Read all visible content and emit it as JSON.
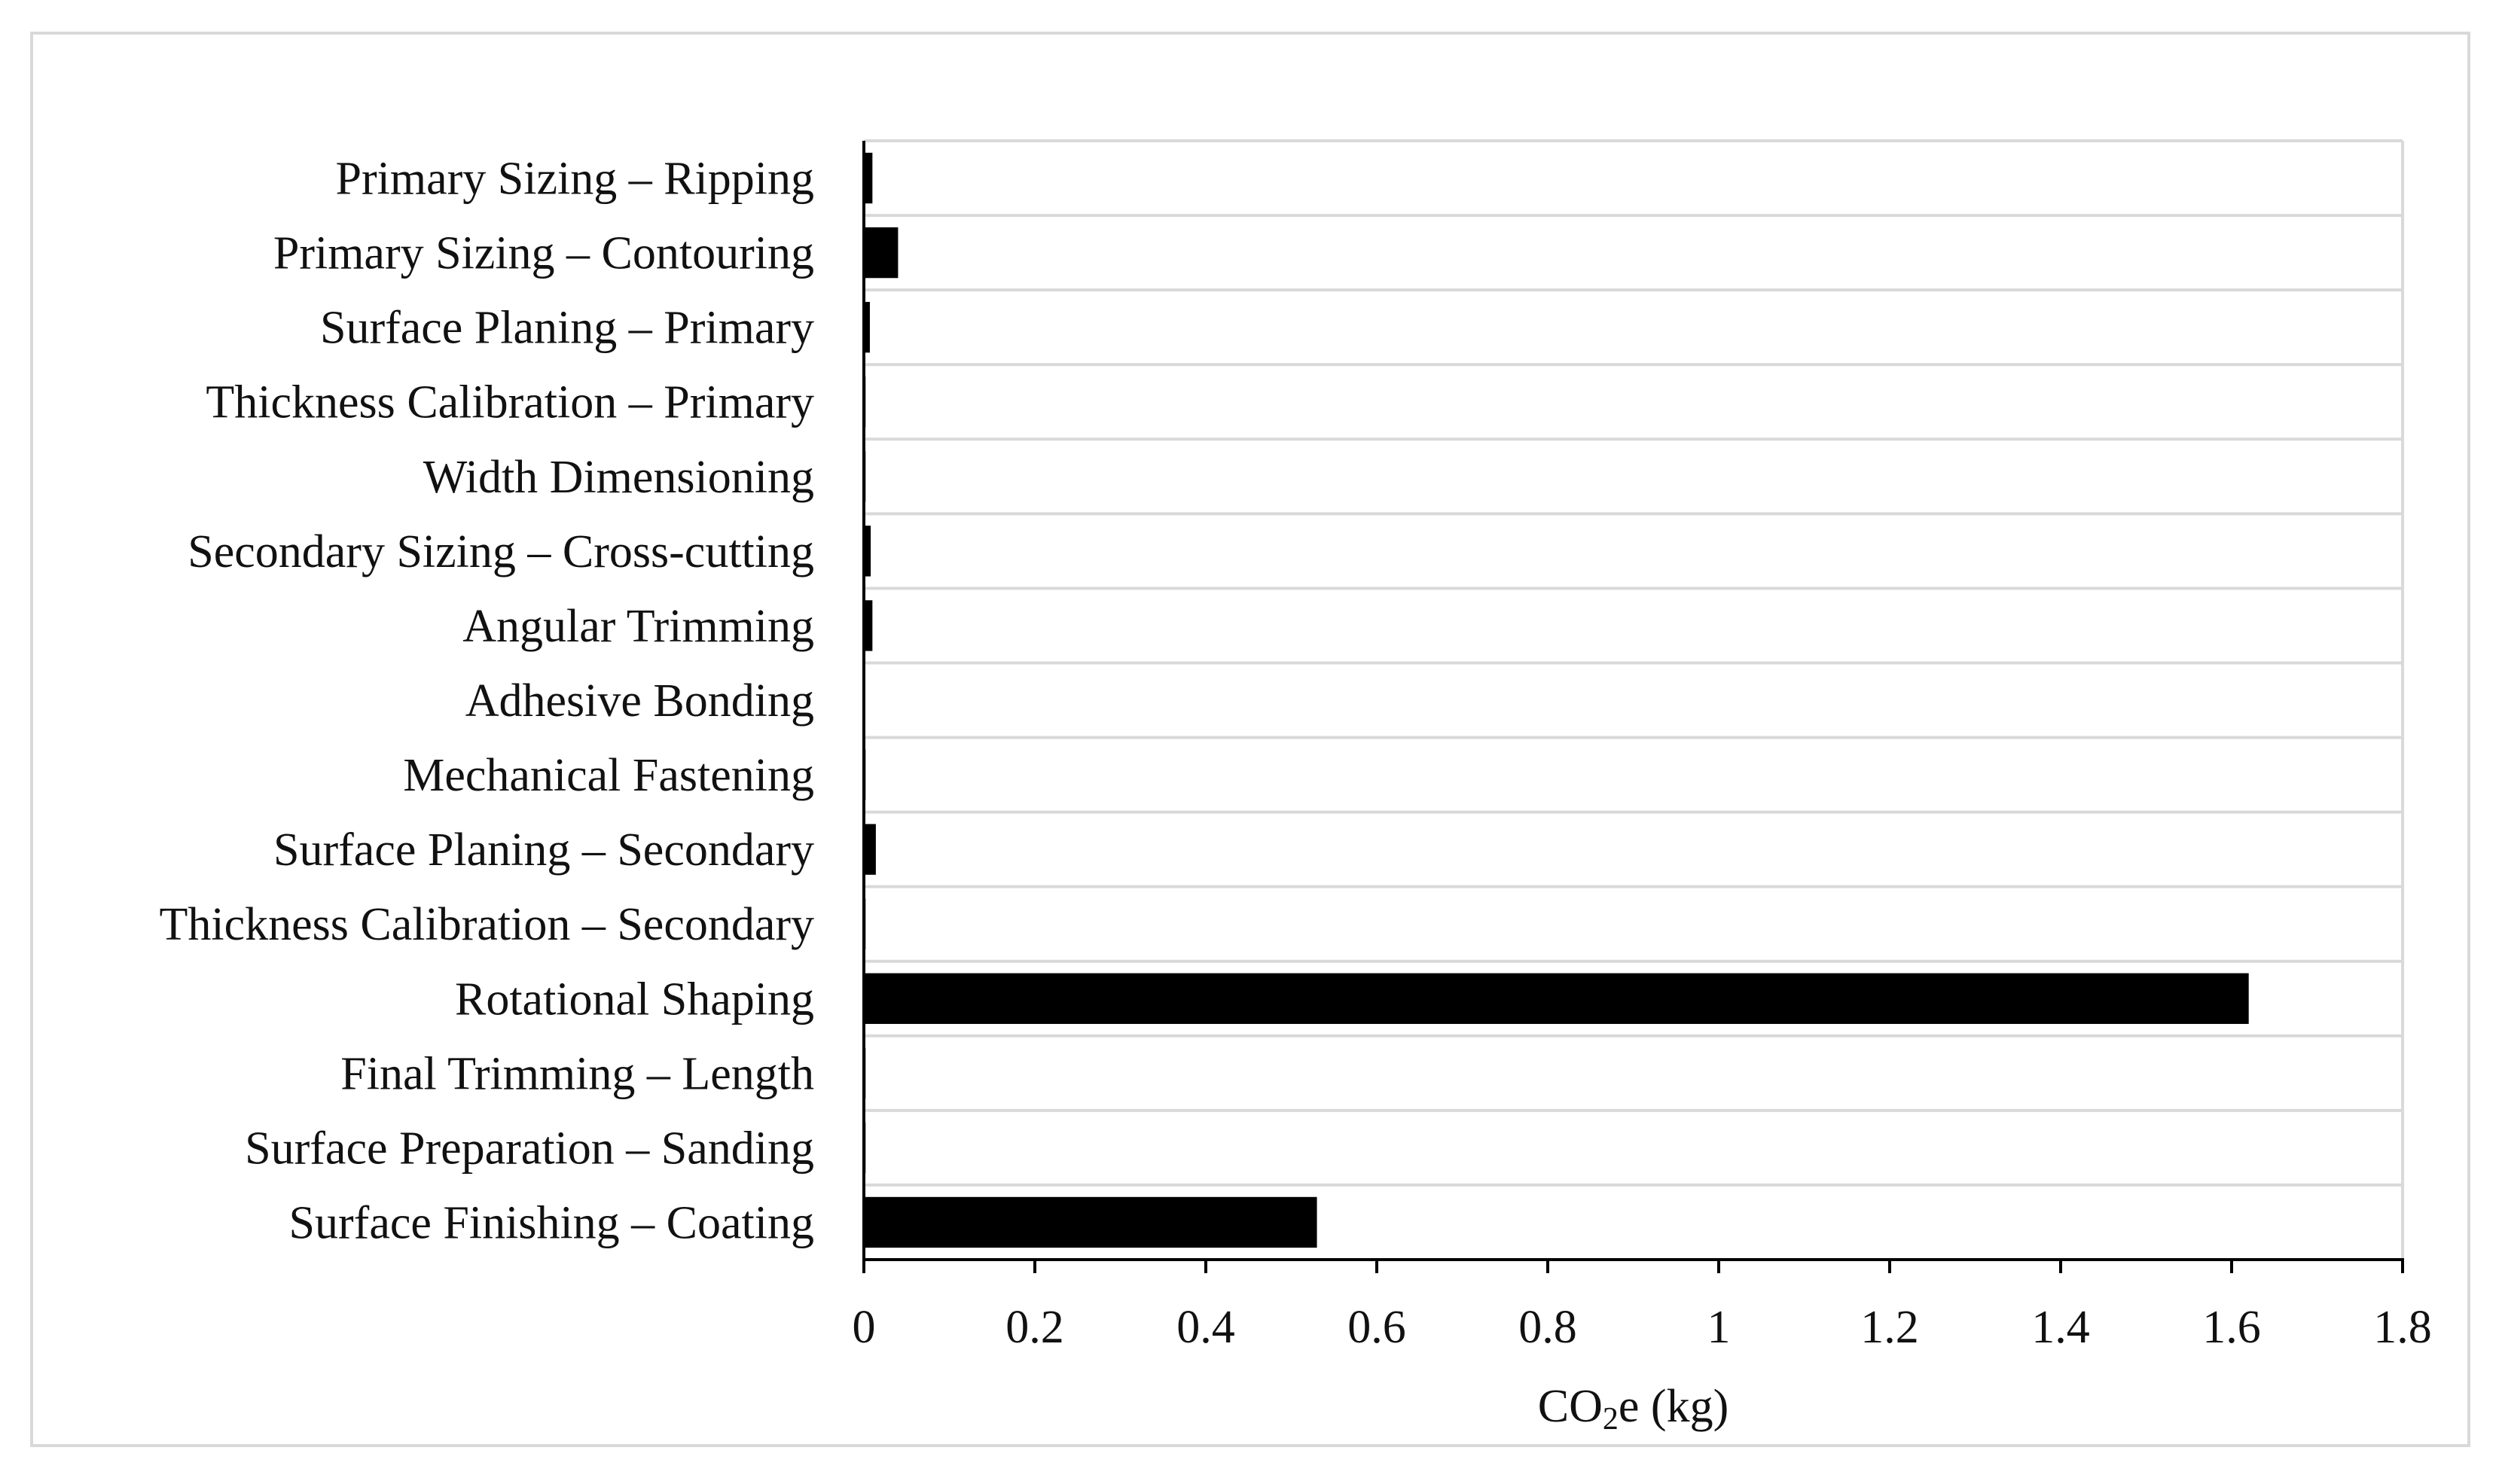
{
  "chart_data": {
    "type": "bar",
    "orientation": "horizontal",
    "categories": [
      "Primary Sizing – Ripping",
      "Primary Sizing – Contouring",
      "Surface Planing – Primary",
      "Thickness Calibration – Primary",
      "Width Dimensioning",
      "Secondary Sizing – Cross-cutting",
      "Angular Trimming",
      "Adhesive Bonding",
      "Mechanical Fastening",
      "Surface Planing – Secondary",
      "Thickness Calibration – Secondary",
      "Rotational Shaping",
      "Final Trimming – Length",
      "Surface Preparation – Sanding",
      "Surface Finishing – Coating"
    ],
    "values": [
      0.01,
      0.04,
      0.007,
      0.002,
      0.002,
      0.008,
      0.01,
      0.0,
      0.002,
      0.014,
      0.002,
      1.62,
      0.002,
      0.002,
      0.53
    ],
    "xlabel_main": "CO",
    "xlabel_sub": "2",
    "xlabel_rest": "e (kg)",
    "xlim": [
      0,
      1.8
    ],
    "xticks": [
      0,
      0.2,
      0.4,
      0.6,
      0.8,
      1,
      1.2,
      1.4,
      1.6,
      1.8
    ],
    "xtick_labels": [
      "0",
      "0.2",
      "0.4",
      "0.6",
      "0.8",
      "1",
      "1.2",
      "1.4",
      "1.6",
      "1.8"
    ],
    "grid": "horizontal",
    "bar_color": "#000000",
    "grid_color": "#d9d9d9",
    "axis_color": "#000000"
  }
}
